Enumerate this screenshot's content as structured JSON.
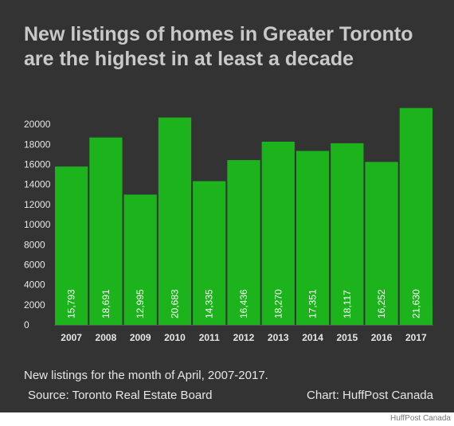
{
  "title": "New listings of homes in Greater Toronto are the highest in at least a decade",
  "note": "New listings for the month of April, 2007-2017.",
  "source": "Source: Toronto Real Estate Board",
  "credit": "Chart: HuffPost Canada",
  "footer": "HuffPost Canada",
  "colors": {
    "background": "#333333",
    "bar": "#1db31d",
    "text": "#e6e6e6",
    "title": "#c9c9c9"
  },
  "chart_data": {
    "type": "bar",
    "title": "New listings of homes in Greater Toronto are the highest in at least a decade",
    "xlabel": "",
    "ylabel": "",
    "categories": [
      "2007",
      "2008",
      "2009",
      "2010",
      "2011",
      "2012",
      "2013",
      "2014",
      "2015",
      "2016",
      "2017"
    ],
    "values": [
      15793,
      18691,
      12995,
      20683,
      14335,
      16436,
      18270,
      17351,
      18117,
      16252,
      21630
    ],
    "value_labels": [
      "15,793",
      "18,691",
      "12,995",
      "20,683",
      "14,335",
      "16,436",
      "18,270",
      "17,351",
      "18,117",
      "16,252",
      "21,630"
    ],
    "yticks": [
      0,
      2000,
      4000,
      6000,
      8000,
      10000,
      12000,
      14000,
      16000,
      18000,
      20000
    ],
    "ylim": [
      0,
      22000
    ],
    "grid": false,
    "legend": "none"
  }
}
